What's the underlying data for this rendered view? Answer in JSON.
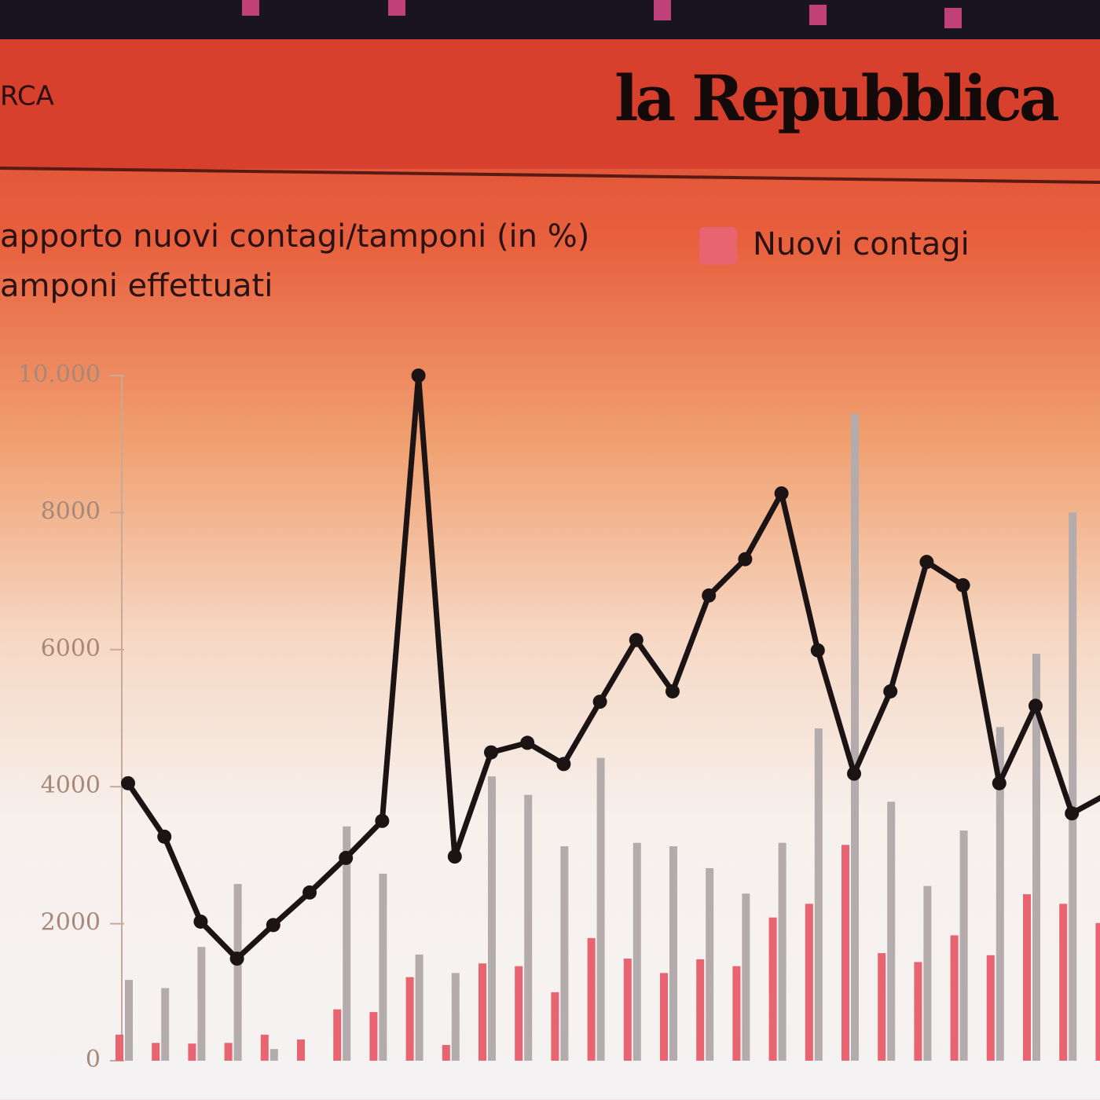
{
  "header": {
    "left_text": "RCA",
    "brand": "la Repubblica"
  },
  "chart_data": {
    "type": "bar",
    "categories": [
      null,
      null,
      null,
      null,
      null,
      null,
      null,
      null,
      null,
      null,
      null,
      null,
      null,
      null,
      null,
      null,
      null,
      null,
      null,
      null,
      null,
      null,
      null,
      null,
      null,
      null,
      null,
      null
    ],
    "series": [
      {
        "name": "apporto nuovi contagi/tamponi (in %)",
        "type": "line",
        "color": "#1c1414",
        "values": [
          4050,
          3270,
          2030,
          1490,
          1980,
          2455,
          2960,
          3500,
          10000,
          2980,
          4500,
          4640,
          4330,
          5240,
          6140,
          5390,
          6790,
          7320,
          8280,
          5990,
          4190,
          5390,
          7280,
          6940,
          4050,
          5180,
          3610,
          3900
        ]
      },
      {
        "name": "Nuovi contagi",
        "type": "bar",
        "color": "#e86470",
        "values": [
          380,
          260,
          250,
          260,
          380,
          310,
          750,
          710,
          1220,
          230,
          1420,
          1380,
          1000,
          1790,
          1490,
          1280,
          1480,
          1380,
          2090,
          2290,
          3150,
          1570,
          1440,
          1830,
          1540,
          2430,
          2290,
          2010
        ]
      },
      {
        "name": "amponi effettuati",
        "type": "bar",
        "color": "#b4acac",
        "values": [
          1180,
          1060,
          1660,
          2580,
          170,
          0,
          3420,
          2730,
          1550,
          1280,
          4150,
          3880,
          3130,
          4420,
          3180,
          3130,
          2810,
          2440,
          3180,
          4850,
          9440,
          3780,
          2550,
          3360,
          4870,
          5940,
          8000,
          null
        ]
      }
    ],
    "ylim": [
      0,
      10000
    ],
    "yticks": [
      0,
      2000,
      4000,
      6000,
      8000,
      {
        "value": 10000,
        "label": "10.000"
      }
    ]
  }
}
